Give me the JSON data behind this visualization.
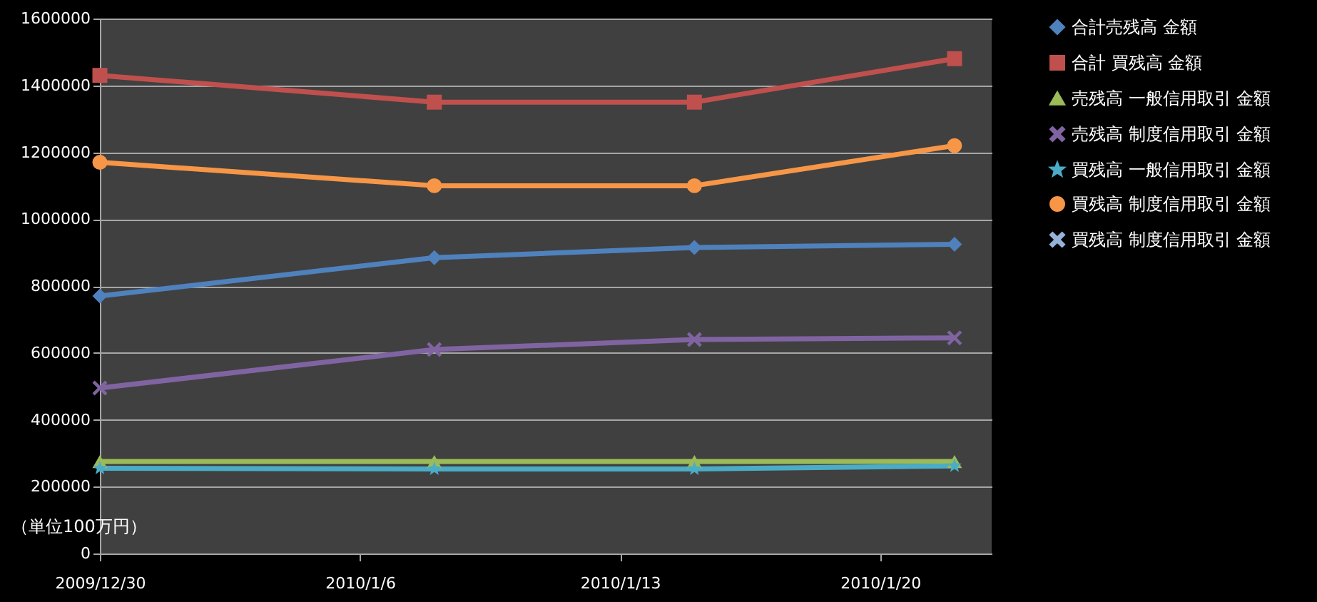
{
  "chart_data": {
    "type": "line",
    "x": [
      "2009-12-30",
      "2010-01-08",
      "2010-01-15",
      "2010-01-22"
    ],
    "xlim": [
      "2009-12-30",
      "2010-01-23"
    ],
    "xticks": [
      {
        "value": "2009-12-30",
        "label": "2009/12/30"
      },
      {
        "value": "2010-01-06",
        "label": "2010/1/6"
      },
      {
        "value": "2010-01-13",
        "label": "2010/1/13"
      },
      {
        "value": "2010-01-20",
        "label": "2010/1/20"
      }
    ],
    "ylim": [
      0,
      1600000
    ],
    "yticks": [
      0,
      200000,
      400000,
      600000,
      800000,
      1000000,
      1200000,
      1400000,
      1600000
    ],
    "grid": "y",
    "legend": "right",
    "annotations": [
      "（単位100万円）"
    ],
    "series": [
      {
        "name": "合計売残高 金額",
        "color": "#4f81bd",
        "marker": "diamond",
        "values": [
          770000,
          885000,
          915000,
          925000
        ]
      },
      {
        "name": "合計 買残高 金額",
        "color": "#c0504d",
        "marker": "square",
        "values": [
          1430000,
          1350000,
          1350000,
          1480000
        ]
      },
      {
        "name": "売残高 一般信用取引 金額",
        "color": "#9bbb59",
        "marker": "triangle",
        "values": [
          275000,
          275000,
          275000,
          275000
        ]
      },
      {
        "name": "売残高 制度信用取引 金額",
        "color": "#8064a2",
        "marker": "cross",
        "values": [
          495000,
          610000,
          640000,
          645000
        ]
      },
      {
        "name": "買残高 一般信用取引 金額",
        "color": "#4bacc6",
        "marker": "star",
        "values": [
          255000,
          253000,
          253000,
          262000
        ]
      },
      {
        "name": "買残高 制度信用取引 金額",
        "color": "#f79646",
        "marker": "circle",
        "values": [
          1170000,
          1100000,
          1100000,
          1220000
        ]
      },
      {
        "name": "買残高 制度信用取引 金額",
        "color": "#95b3d7",
        "marker": "cross",
        "values": [
          null,
          null,
          null,
          null
        ]
      }
    ]
  }
}
